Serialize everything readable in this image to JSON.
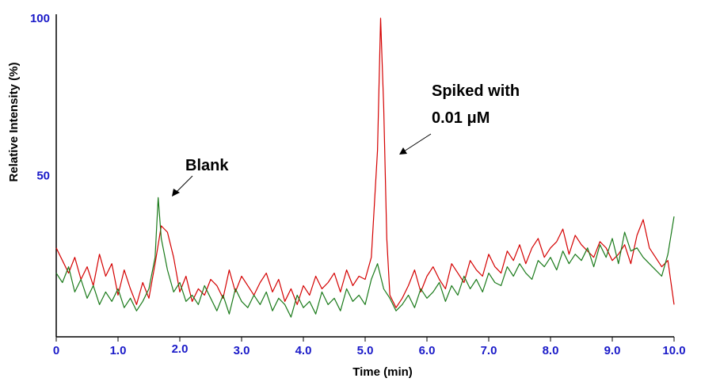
{
  "chart_data": {
    "type": "line",
    "xlabel": "Time (min)",
    "ylabel": "Relative Intensity (%)",
    "xlim": [
      0,
      10
    ],
    "ylim": [
      0,
      100
    ],
    "x_ticks": [
      "0",
      "1.0",
      "2.0",
      "3.0",
      "4.0",
      "5.0",
      "6.0",
      "7.0",
      "8.0",
      "9.0",
      "10.0"
    ],
    "y_ticks": [
      "50",
      "100"
    ],
    "grid": false,
    "legend": "none",
    "series": [
      {
        "color": "#d40000",
        "x": [
          0.0,
          0.1,
          0.2,
          0.3,
          0.4,
          0.5,
          0.6,
          0.7,
          0.8,
          0.9,
          1.0,
          1.1,
          1.2,
          1.3,
          1.4,
          1.5,
          1.6,
          1.7,
          1.8,
          1.9,
          2.0,
          2.1,
          2.2,
          2.3,
          2.4,
          2.5,
          2.6,
          2.7,
          2.8,
          2.9,
          3.0,
          3.1,
          3.2,
          3.3,
          3.4,
          3.5,
          3.6,
          3.7,
          3.8,
          3.9,
          4.0,
          4.1,
          4.2,
          4.3,
          4.4,
          4.5,
          4.6,
          4.7,
          4.8,
          4.9,
          5.0,
          5.1,
          5.2,
          5.25,
          5.3,
          5.35,
          5.4,
          5.5,
          5.6,
          5.7,
          5.8,
          5.9,
          6.0,
          6.1,
          6.2,
          6.3,
          6.4,
          6.5,
          6.6,
          6.7,
          6.8,
          6.9,
          7.0,
          7.1,
          7.2,
          7.3,
          7.4,
          7.5,
          7.6,
          7.7,
          7.8,
          7.9,
          8.0,
          8.1,
          8.2,
          8.3,
          8.4,
          8.5,
          8.6,
          8.7,
          8.8,
          8.9,
          9.0,
          9.1,
          9.2,
          9.3,
          9.4,
          9.5,
          9.6,
          9.7,
          9.8,
          9.9,
          10.0
        ],
        "y": [
          27,
          23,
          19,
          24,
          17,
          21,
          15,
          25,
          18,
          22,
          12,
          20,
          14,
          9,
          16,
          11,
          22,
          34,
          32,
          24,
          13,
          18,
          10,
          14,
          12,
          17,
          15,
          11,
          20,
          13,
          18,
          15,
          12,
          16,
          19,
          13,
          17,
          10,
          14,
          9,
          15,
          12,
          18,
          14,
          16,
          19,
          13,
          20,
          15,
          18,
          17,
          24,
          58,
          100,
          72,
          30,
          12,
          8,
          11,
          15,
          20,
          13,
          18,
          21,
          17,
          14,
          22,
          19,
          16,
          23,
          20,
          18,
          25,
          21,
          19,
          26,
          23,
          28,
          22,
          27,
          30,
          24,
          27,
          29,
          33,
          25,
          31,
          28,
          26,
          24,
          29,
          27,
          23,
          25,
          28,
          22,
          31,
          36,
          27,
          24,
          21,
          23,
          9
        ]
      },
      {
        "color": "#1a7a1a",
        "x": [
          0.0,
          0.1,
          0.2,
          0.3,
          0.4,
          0.5,
          0.6,
          0.7,
          0.8,
          0.9,
          1.0,
          1.1,
          1.2,
          1.3,
          1.4,
          1.5,
          1.6,
          1.65,
          1.7,
          1.8,
          1.9,
          2.0,
          2.1,
          2.2,
          2.3,
          2.4,
          2.5,
          2.6,
          2.7,
          2.8,
          2.9,
          3.0,
          3.1,
          3.2,
          3.3,
          3.4,
          3.5,
          3.6,
          3.7,
          3.8,
          3.9,
          4.0,
          4.1,
          4.2,
          4.3,
          4.4,
          4.5,
          4.6,
          4.7,
          4.8,
          4.9,
          5.0,
          5.1,
          5.2,
          5.3,
          5.4,
          5.5,
          5.6,
          5.7,
          5.8,
          5.9,
          6.0,
          6.1,
          6.2,
          6.3,
          6.4,
          6.5,
          6.6,
          6.7,
          6.8,
          6.9,
          7.0,
          7.1,
          7.2,
          7.3,
          7.4,
          7.5,
          7.6,
          7.7,
          7.8,
          7.9,
          8.0,
          8.1,
          8.2,
          8.3,
          8.4,
          8.5,
          8.6,
          8.7,
          8.8,
          8.9,
          9.0,
          9.1,
          9.2,
          9.3,
          9.4,
          9.5,
          9.6,
          9.7,
          9.8,
          9.9,
          10.0
        ],
        "y": [
          19,
          16,
          21,
          13,
          17,
          11,
          15,
          9,
          13,
          10,
          14,
          8,
          11,
          7,
          10,
          14,
          24,
          43,
          30,
          20,
          13,
          16,
          10,
          12,
          9,
          15,
          11,
          7,
          12,
          6,
          14,
          10,
          8,
          12,
          9,
          13,
          7,
          11,
          9,
          5,
          12,
          8,
          10,
          6,
          13,
          9,
          11,
          7,
          14,
          10,
          12,
          9,
          17,
          22,
          14,
          11,
          7,
          9,
          12,
          8,
          14,
          11,
          13,
          16,
          10,
          15,
          12,
          18,
          14,
          17,
          13,
          19,
          16,
          15,
          21,
          18,
          22,
          19,
          17,
          23,
          21,
          24,
          20,
          26,
          22,
          25,
          23,
          27,
          21,
          28,
          24,
          30,
          22,
          32,
          26,
          27,
          24,
          22,
          20,
          18,
          25,
          37
        ]
      }
    ],
    "annotations": [
      {
        "label": "Blank",
        "arrow_to": [
          1.8,
          45
        ]
      },
      {
        "label": "Spiked with",
        "label2": "0.01 μM",
        "arrow_to": [
          5.55,
          60
        ]
      }
    ]
  }
}
